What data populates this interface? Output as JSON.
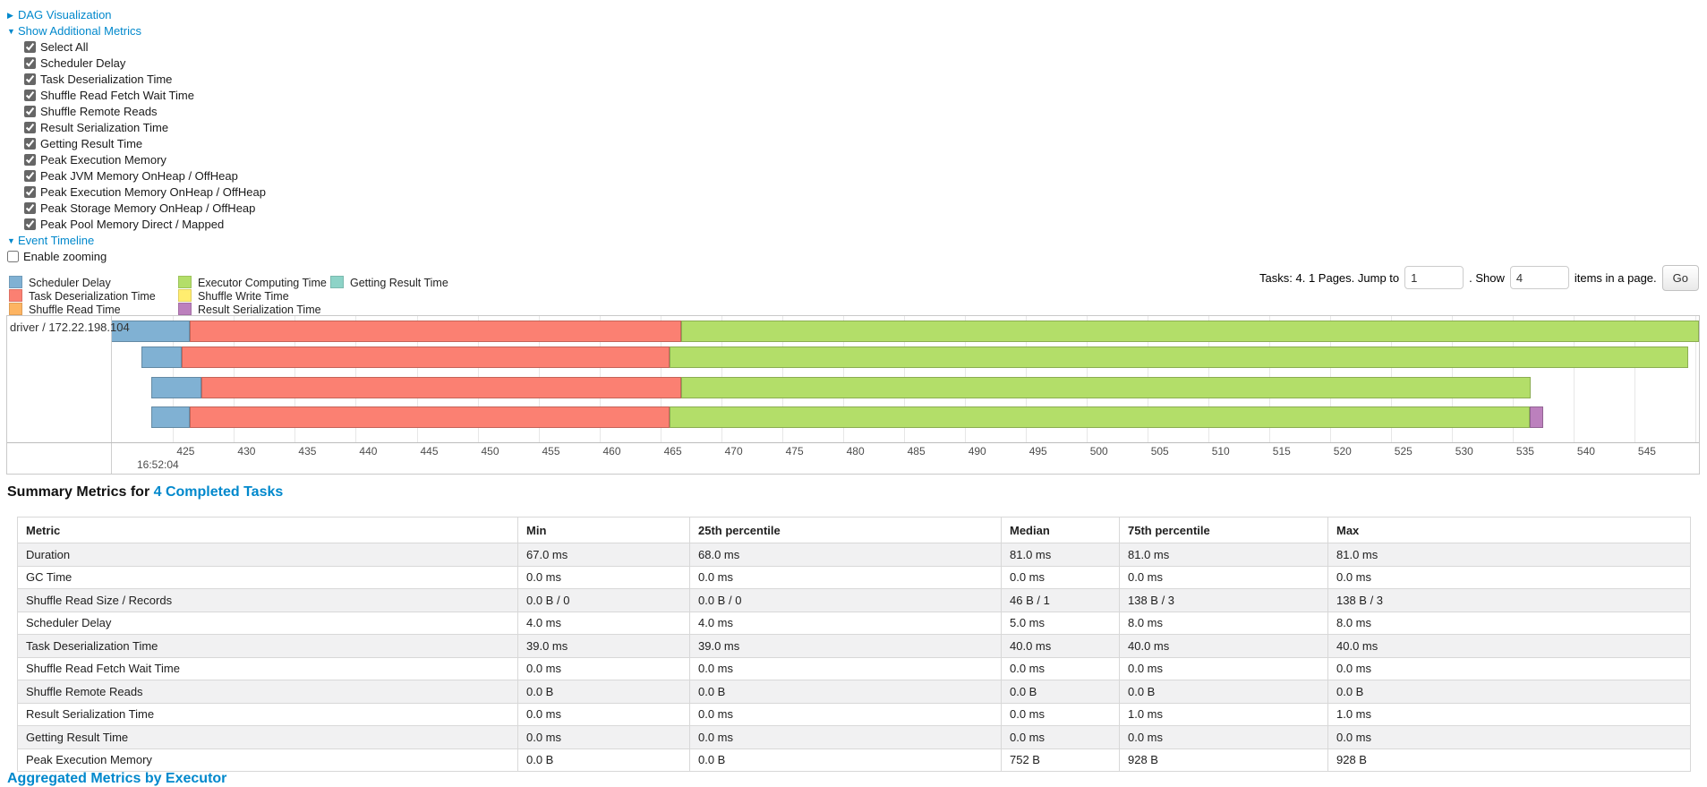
{
  "controls": {
    "dag": {
      "arrow": "▶",
      "label": "DAG Visualization"
    },
    "metrics": {
      "arrow": "▼",
      "label": "Show Additional Metrics"
    },
    "checkboxes": [
      {
        "label": "Select All",
        "checked": true
      },
      {
        "label": "Scheduler Delay",
        "checked": true
      },
      {
        "label": "Task Deserialization Time",
        "checked": true
      },
      {
        "label": "Shuffle Read Fetch Wait Time",
        "checked": true
      },
      {
        "label": "Shuffle Remote Reads",
        "checked": true
      },
      {
        "label": "Result Serialization Time",
        "checked": true
      },
      {
        "label": "Getting Result Time",
        "checked": true
      },
      {
        "label": "Peak Execution Memory",
        "checked": true
      },
      {
        "label": "Peak JVM Memory OnHeap / OffHeap",
        "checked": true
      },
      {
        "label": "Peak Execution Memory OnHeap / OffHeap",
        "checked": true
      },
      {
        "label": "Peak Storage Memory OnHeap / OffHeap",
        "checked": true
      },
      {
        "label": "Peak Pool Memory Direct / Mapped",
        "checked": true
      }
    ],
    "event_timeline": {
      "arrow": "▼",
      "label": "Event Timeline"
    },
    "enable_zooming": {
      "label": "Enable zooming",
      "checked": false
    }
  },
  "legend": {
    "items": [
      {
        "key": "scheduler_delay",
        "label": "Scheduler Delay"
      },
      {
        "key": "executor_computing",
        "label": "Executor Computing Time"
      },
      {
        "key": "getting_result",
        "label": "Getting Result Time"
      },
      {
        "key": "task_deserialization",
        "label": "Task Deserialization Time"
      },
      {
        "key": "shuffle_write",
        "label": "Shuffle Write Time"
      },
      {
        "key": "shuffle_read",
        "label": "Shuffle Read Time"
      },
      {
        "key": "result_serialization",
        "label": "Result Serialization Time"
      }
    ]
  },
  "pagination": {
    "summary_text": "Tasks: 4. 1 Pages. Jump to",
    "jump_value": "1",
    "show_label": ". Show",
    "show_value": "4",
    "items_label": "items in a page.",
    "go_label": "Go"
  },
  "chart_data": {
    "type": "timeline",
    "row_label": "driver / 172.22.198.104",
    "major_label": "16:52:04",
    "axis": {
      "domain_min": 419.9,
      "domain_max": 550.3,
      "tick_min": 425,
      "tick_max": 550,
      "tick_step": 5
    },
    "colors": {
      "scheduler_delay": "#80B1D3",
      "task_deserialization": "#FB8072",
      "shuffle_read": "#FDB462",
      "executor_computing": "#B3DE69",
      "shuffle_write": "#FFED6F",
      "result_serialization": "#BC80BD",
      "getting_result": "#8DD3C7"
    },
    "tasks": [
      {
        "segments": [
          {
            "type": "scheduler_delay",
            "start": 419.9,
            "end": 426.4
          },
          {
            "type": "task_deserialization",
            "start": 426.4,
            "end": 466.7
          },
          {
            "type": "executor_computing",
            "start": 466.7,
            "end": 550.4
          }
        ]
      },
      {
        "segments": [
          {
            "type": "scheduler_delay",
            "start": 422.4,
            "end": 425.7
          },
          {
            "type": "task_deserialization",
            "start": 425.7,
            "end": 465.8
          },
          {
            "type": "executor_computing",
            "start": 465.8,
            "end": 549.4
          }
        ]
      },
      {
        "segments": [
          {
            "type": "scheduler_delay",
            "start": 423.2,
            "end": 427.3
          },
          {
            "type": "task_deserialization",
            "start": 427.3,
            "end": 466.7
          },
          {
            "type": "executor_computing",
            "start": 466.7,
            "end": 536.5
          }
        ]
      },
      {
        "segments": [
          {
            "type": "scheduler_delay",
            "start": 423.2,
            "end": 426.4
          },
          {
            "type": "task_deserialization",
            "start": 426.4,
            "end": 465.8
          },
          {
            "type": "executor_computing",
            "start": 465.8,
            "end": 536.4
          },
          {
            "type": "result_serialization",
            "start": 536.4,
            "end": 537.5
          }
        ]
      }
    ]
  },
  "summary": {
    "title": "Summary Metrics for",
    "link": "4 Completed Tasks",
    "headers": [
      "Metric",
      "Min",
      "25th percentile",
      "Median",
      "75th percentile",
      "Max"
    ],
    "rows": [
      [
        "Duration",
        "67.0 ms",
        "68.0 ms",
        "81.0 ms",
        "81.0 ms",
        "81.0 ms"
      ],
      [
        "GC Time",
        "0.0 ms",
        "0.0 ms",
        "0.0 ms",
        "0.0 ms",
        "0.0 ms"
      ],
      [
        "Shuffle Read Size / Records",
        "0.0 B / 0",
        "0.0 B / 0",
        "46 B / 1",
        "138 B / 3",
        "138 B / 3"
      ],
      [
        "Scheduler Delay",
        "4.0 ms",
        "4.0 ms",
        "5.0 ms",
        "8.0 ms",
        "8.0 ms"
      ],
      [
        "Task Deserialization Time",
        "39.0 ms",
        "39.0 ms",
        "40.0 ms",
        "40.0 ms",
        "40.0 ms"
      ],
      [
        "Shuffle Read Fetch Wait Time",
        "0.0 ms",
        "0.0 ms",
        "0.0 ms",
        "0.0 ms",
        "0.0 ms"
      ],
      [
        "Shuffle Remote Reads",
        "0.0 B",
        "0.0 B",
        "0.0 B",
        "0.0 B",
        "0.0 B"
      ],
      [
        "Result Serialization Time",
        "0.0 ms",
        "0.0 ms",
        "0.0 ms",
        "1.0 ms",
        "1.0 ms"
      ],
      [
        "Getting Result Time",
        "0.0 ms",
        "0.0 ms",
        "0.0 ms",
        "0.0 ms",
        "0.0 ms"
      ],
      [
        "Peak Execution Memory",
        "0.0 B",
        "0.0 B",
        "752 B",
        "928 B",
        "928 B"
      ]
    ]
  },
  "footer": {
    "clipped_heading": "Aggregated Metrics by Executor"
  }
}
